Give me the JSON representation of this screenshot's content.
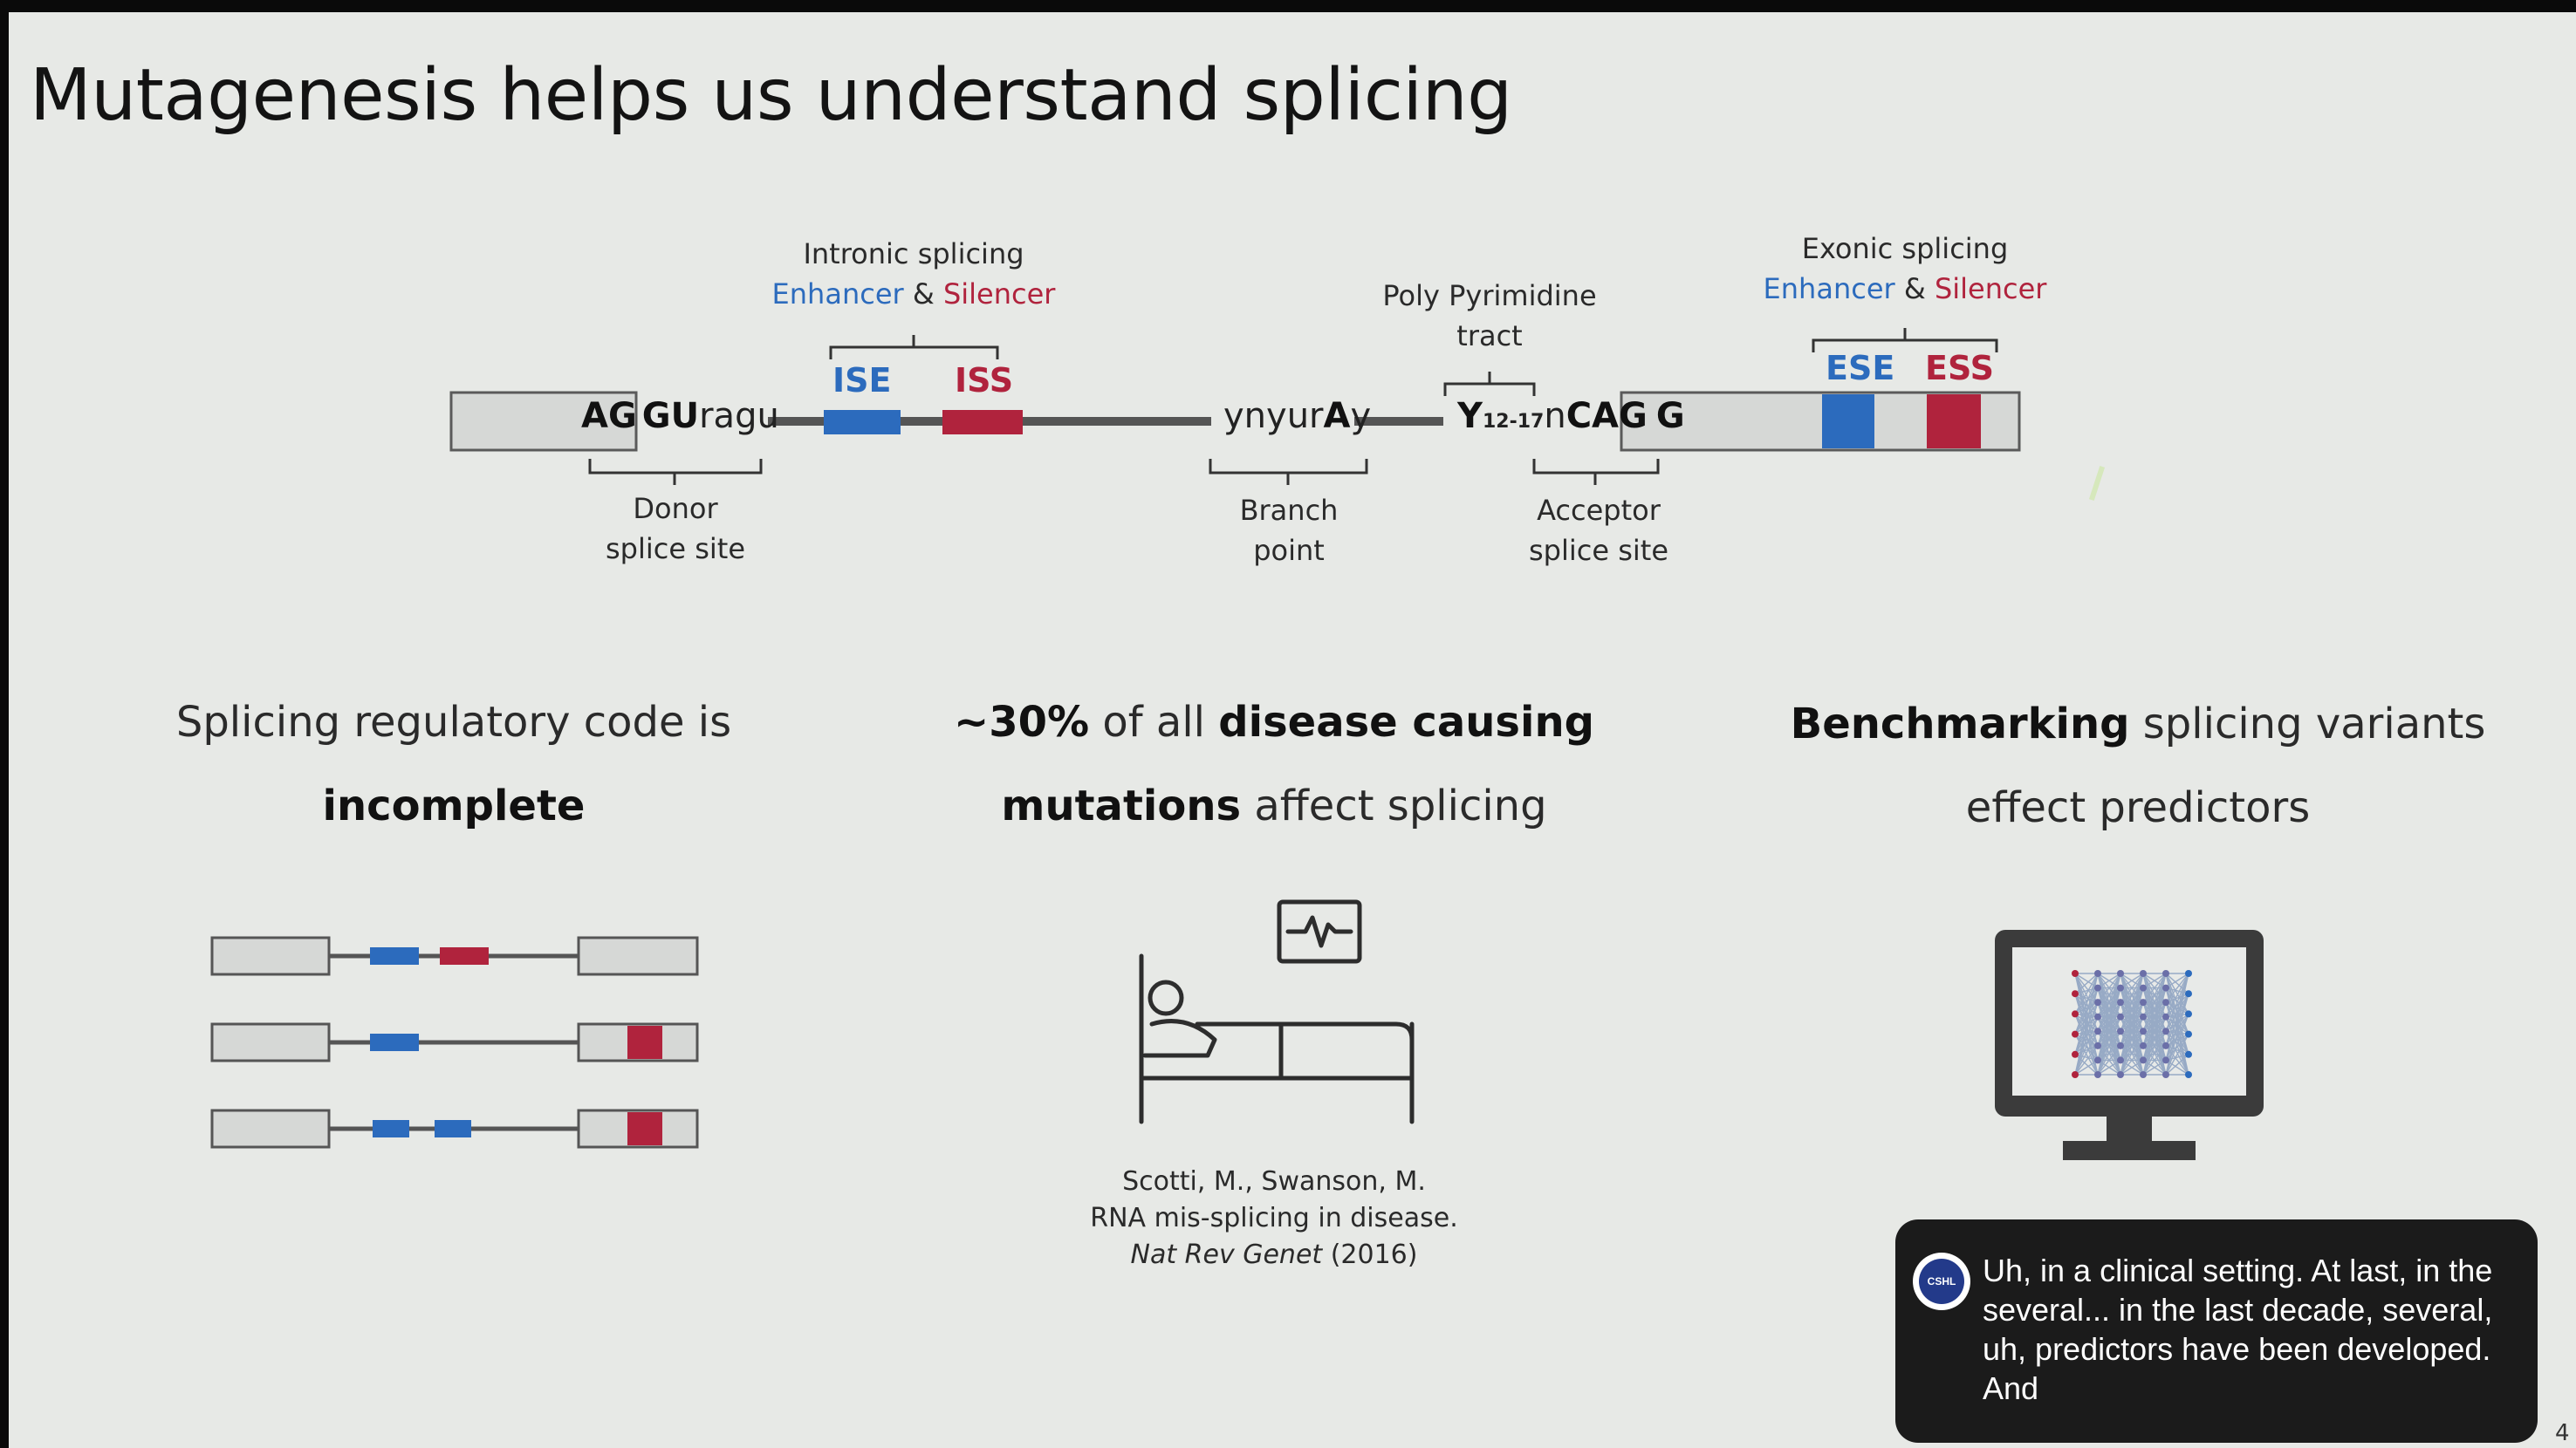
{
  "slide": {
    "title": "Mutagenesis helps us understand splicing",
    "page_number": "4"
  },
  "gene_diagram": {
    "intronic": {
      "title": "Intronic splicing",
      "enhancer": "Enhancer",
      "amp": "&",
      "silencer": "Silencer",
      "ise": "ISE",
      "iss": "ISS"
    },
    "exonic": {
      "title": "Exonic splicing",
      "enhancer": "Enhancer",
      "amp": "&",
      "silencer": "Silencer",
      "ese": "ESE",
      "ess": "ESS"
    },
    "polypyrimidine": {
      "line1": "Poly Pyrimidine",
      "line2": "tract"
    },
    "donor": {
      "line1": "Donor",
      "line2": "splice site"
    },
    "branch": {
      "line1": "Branch",
      "line2": "point"
    },
    "acceptor": {
      "line1": "Acceptor",
      "line2": "splice site"
    },
    "seq_donor_ag": "AG",
    "seq_donor_gu": "GU",
    "seq_donor_ragu": "ragu",
    "seq_branch_pre": "ynyur",
    "seq_branch_a": "A",
    "seq_branch_y": "y",
    "seq_tract_y": "Y",
    "seq_tract_sub": "12-17",
    "seq_tract_n": "n",
    "seq_acceptor_cag": "CAG",
    "seq_acceptor_g": "G"
  },
  "columns": {
    "left": {
      "line1": "Splicing regulatory code is",
      "line2_bold": "incomplete"
    },
    "middle": {
      "line1_bold_a": "~30%",
      "line1_mid": " of all ",
      "line1_bold_b": "disease causing",
      "line2_bold": "mutations",
      "line2_rest": " affect splicing",
      "citation_line1": "Scotti, M., Swanson, M.",
      "citation_line2": "RNA mis-splicing in disease.",
      "citation_journal": "Nat Rev Genet",
      "citation_year": " (2016)"
    },
    "right": {
      "line1_bold": "Benchmarking",
      "line1_rest": " splicing variants",
      "line2": "effect predictors"
    }
  },
  "caption": {
    "logo_text": "CSHL",
    "text": "Uh, in a clinical setting. At last, in the several... in the last decade, several, uh, predictors have been developed. And"
  },
  "colors": {
    "enhancer_blue": "#2c6bbd",
    "silencer_red": "#b0233d",
    "exon_fill": "#d6d8d6",
    "line_gray": "#555555"
  }
}
